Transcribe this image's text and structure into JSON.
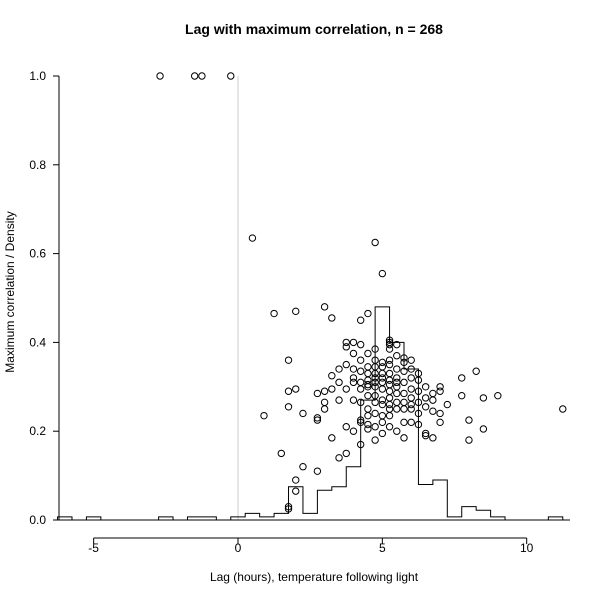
{
  "chart_data": {
    "type": "scatter",
    "title": "Lag with maximum correlation, n = 268",
    "xlabel": "Lag (hours), temperature following light",
    "ylabel": "Maximum correlation / Density",
    "xlim": [
      -6.2,
      11.5
    ],
    "ylim": [
      0,
      1.0
    ],
    "x_ticks": [
      -5,
      0,
      5,
      10
    ],
    "y_ticks": [
      "0.0",
      "0.2",
      "0.4",
      "0.6",
      "0.8",
      "1.0"
    ],
    "reference_line_x": 0,
    "reference_line_color": "#cccccc",
    "grid": false,
    "points": [
      [
        -2.7,
        1.0
      ],
      [
        -1.5,
        1.0
      ],
      [
        -1.25,
        1.0
      ],
      [
        -0.25,
        1.0
      ],
      [
        0.5,
        0.635
      ],
      [
        0.9,
        0.235
      ],
      [
        1.25,
        0.465
      ],
      [
        1.5,
        0.15
      ],
      [
        1.75,
        0.36
      ],
      [
        1.75,
        0.29
      ],
      [
        1.75,
        0.255
      ],
      [
        1.75,
        0.03
      ],
      [
        1.75,
        0.025
      ],
      [
        2.0,
        0.47
      ],
      [
        2.0,
        0.295
      ],
      [
        2.0,
        0.09
      ],
      [
        2.0,
        0.065
      ],
      [
        2.25,
        0.24
      ],
      [
        2.25,
        0.12
      ],
      [
        2.75,
        0.285
      ],
      [
        2.75,
        0.23
      ],
      [
        2.75,
        0.225
      ],
      [
        2.75,
        0.11
      ],
      [
        3.0,
        0.48
      ],
      [
        3.0,
        0.29
      ],
      [
        3.0,
        0.265
      ],
      [
        3.0,
        0.25
      ],
      [
        3.25,
        0.455
      ],
      [
        3.25,
        0.325
      ],
      [
        3.25,
        0.295
      ],
      [
        3.25,
        0.185
      ],
      [
        3.5,
        0.34
      ],
      [
        3.5,
        0.31
      ],
      [
        3.5,
        0.27
      ],
      [
        3.5,
        0.14
      ],
      [
        3.75,
        0.4
      ],
      [
        3.75,
        0.39
      ],
      [
        3.75,
        0.35
      ],
      [
        3.75,
        0.295
      ],
      [
        3.75,
        0.21
      ],
      [
        3.75,
        0.15
      ],
      [
        4.0,
        0.4
      ],
      [
        4.0,
        0.375
      ],
      [
        4.0,
        0.34
      ],
      [
        4.0,
        0.32
      ],
      [
        4.0,
        0.31
      ],
      [
        4.0,
        0.27
      ],
      [
        4.0,
        0.2
      ],
      [
        4.25,
        0.45
      ],
      [
        4.25,
        0.395
      ],
      [
        4.25,
        0.36
      ],
      [
        4.25,
        0.335
      ],
      [
        4.25,
        0.31
      ],
      [
        4.25,
        0.295
      ],
      [
        4.25,
        0.265
      ],
      [
        4.25,
        0.225
      ],
      [
        4.25,
        0.22
      ],
      [
        4.25,
        0.17
      ],
      [
        4.5,
        0.465
      ],
      [
        4.5,
        0.375
      ],
      [
        4.5,
        0.345
      ],
      [
        4.5,
        0.33
      ],
      [
        4.5,
        0.315
      ],
      [
        4.5,
        0.305
      ],
      [
        4.5,
        0.3
      ],
      [
        4.5,
        0.28
      ],
      [
        4.5,
        0.25
      ],
      [
        4.5,
        0.235
      ],
      [
        4.5,
        0.215
      ],
      [
        4.5,
        0.205
      ],
      [
        4.75,
        0.625
      ],
      [
        4.75,
        0.385
      ],
      [
        4.75,
        0.36
      ],
      [
        4.75,
        0.345
      ],
      [
        4.75,
        0.33
      ],
      [
        4.75,
        0.32
      ],
      [
        4.75,
        0.31
      ],
      [
        4.75,
        0.3
      ],
      [
        4.75,
        0.28
      ],
      [
        4.75,
        0.265
      ],
      [
        4.75,
        0.24
      ],
      [
        4.75,
        0.21
      ],
      [
        4.75,
        0.18
      ],
      [
        5.0,
        0.555
      ],
      [
        5.0,
        0.355
      ],
      [
        5.0,
        0.345
      ],
      [
        5.0,
        0.33
      ],
      [
        5.0,
        0.32
      ],
      [
        5.0,
        0.31
      ],
      [
        5.0,
        0.295
      ],
      [
        5.0,
        0.27
      ],
      [
        5.0,
        0.26
      ],
      [
        5.0,
        0.235
      ],
      [
        5.0,
        0.22
      ],
      [
        5.0,
        0.195
      ],
      [
        5.25,
        0.405
      ],
      [
        5.25,
        0.4
      ],
      [
        5.25,
        0.395
      ],
      [
        5.25,
        0.385
      ],
      [
        5.25,
        0.36
      ],
      [
        5.25,
        0.35
      ],
      [
        5.25,
        0.33
      ],
      [
        5.25,
        0.315
      ],
      [
        5.25,
        0.305
      ],
      [
        5.25,
        0.29
      ],
      [
        5.25,
        0.275
      ],
      [
        5.25,
        0.26
      ],
      [
        5.25,
        0.25
      ],
      [
        5.25,
        0.235
      ],
      [
        5.25,
        0.21
      ],
      [
        5.5,
        0.395
      ],
      [
        5.5,
        0.37
      ],
      [
        5.5,
        0.34
      ],
      [
        5.5,
        0.32
      ],
      [
        5.5,
        0.31
      ],
      [
        5.5,
        0.3
      ],
      [
        5.5,
        0.285
      ],
      [
        5.5,
        0.265
      ],
      [
        5.5,
        0.25
      ],
      [
        5.5,
        0.2
      ],
      [
        5.75,
        0.365
      ],
      [
        5.75,
        0.355
      ],
      [
        5.75,
        0.335
      ],
      [
        5.75,
        0.31
      ],
      [
        5.75,
        0.285
      ],
      [
        5.75,
        0.265
      ],
      [
        5.75,
        0.25
      ],
      [
        5.75,
        0.22
      ],
      [
        5.75,
        0.185
      ],
      [
        6.0,
        0.36
      ],
      [
        6.0,
        0.34
      ],
      [
        6.0,
        0.32
      ],
      [
        6.0,
        0.295
      ],
      [
        6.0,
        0.275
      ],
      [
        6.0,
        0.26
      ],
      [
        6.0,
        0.25
      ],
      [
        6.0,
        0.22
      ],
      [
        6.25,
        0.33
      ],
      [
        6.25,
        0.315
      ],
      [
        6.25,
        0.29
      ],
      [
        6.25,
        0.265
      ],
      [
        6.25,
        0.24
      ],
      [
        6.25,
        0.215
      ],
      [
        6.5,
        0.3
      ],
      [
        6.5,
        0.275
      ],
      [
        6.5,
        0.255
      ],
      [
        6.5,
        0.195
      ],
      [
        6.5,
        0.19
      ],
      [
        6.75,
        0.285
      ],
      [
        6.75,
        0.27
      ],
      [
        6.75,
        0.245
      ],
      [
        6.75,
        0.185
      ],
      [
        7.0,
        0.3
      ],
      [
        7.0,
        0.29
      ],
      [
        7.0,
        0.24
      ],
      [
        7.0,
        0.22
      ],
      [
        7.25,
        0.26
      ],
      [
        7.75,
        0.32
      ],
      [
        7.75,
        0.28
      ],
      [
        8.0,
        0.225
      ],
      [
        8.0,
        0.18
      ],
      [
        8.25,
        0.335
      ],
      [
        8.5,
        0.275
      ],
      [
        8.5,
        0.205
      ],
      [
        9.0,
        0.28
      ],
      [
        11.25,
        0.25
      ]
    ],
    "histogram": {
      "bin_width": 0.5,
      "edges": [
        -6.25,
        -5.75,
        -5.25,
        -4.75,
        -4.25,
        -3.75,
        -3.25,
        -2.75,
        -2.25,
        -1.75,
        -1.25,
        -0.75,
        -0.25,
        0.25,
        0.75,
        1.25,
        1.75,
        2.25,
        2.75,
        3.25,
        3.75,
        4.25,
        4.75,
        5.25,
        5.75,
        6.25,
        6.75,
        7.25,
        7.75,
        8.25,
        8.75,
        9.25,
        9.75,
        10.25,
        10.75,
        11.25
      ],
      "density": [
        0.007,
        0.0,
        0.007,
        0.0,
        0.0,
        0.0,
        0.0,
        0.007,
        0.0,
        0.007,
        0.007,
        0.0,
        0.007,
        0.015,
        0.007,
        0.015,
        0.075,
        0.015,
        0.067,
        0.075,
        0.12,
        0.27,
        0.48,
        0.4,
        0.34,
        0.08,
        0.09,
        0.007,
        0.03,
        0.022,
        0.007,
        0.0,
        0.0,
        0.0,
        0.007
      ]
    }
  }
}
